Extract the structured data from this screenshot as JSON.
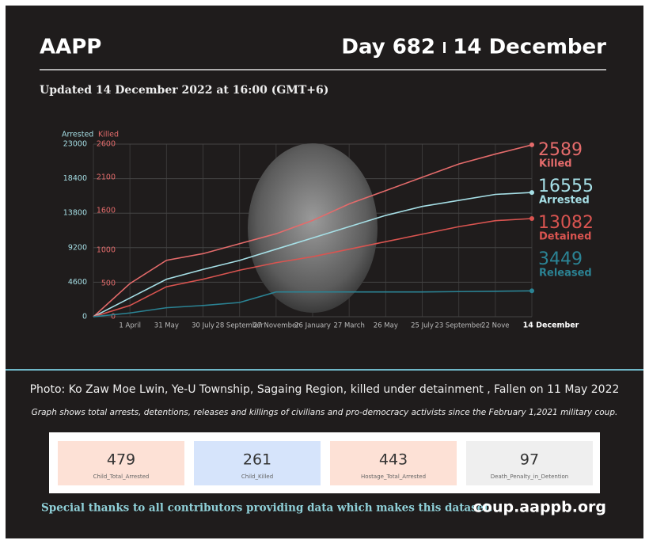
{
  "header": {
    "title": "AAPP",
    "day": "Day 682",
    "date": "14 December",
    "updated": "Updated 14 December 2022 at 16:00 (GMT+6)"
  },
  "chart_data": {
    "type": "line",
    "categories": [
      null,
      "1 April",
      "31 May",
      "30 July",
      "28 September",
      "27 November",
      "26 January",
      "27 March",
      "26 May",
      "25 July",
      "23 September",
      "22 Nove",
      "14 December"
    ],
    "ylabel": "Arrested",
    "y2label": "Killed",
    "ylim": [
      0,
      23000
    ],
    "yticks": [
      0,
      4600,
      9200,
      13800,
      18400,
      23000
    ],
    "y2lim": [
      0,
      2600
    ],
    "y2ticks": [
      0,
      500,
      1000,
      1600,
      2100,
      2600
    ],
    "grid": true,
    "series": [
      {
        "name": "Killed",
        "color": "#e46b6b",
        "axis": "y2",
        "values": [
          0,
          500,
          850,
          950,
          1100,
          1250,
          1450,
          1700,
          1900,
          2100,
          2300,
          2450,
          2589
        ]
      },
      {
        "name": "Arrested",
        "color": "#a6dfe6",
        "values": [
          0,
          2500,
          5000,
          6300,
          7500,
          9000,
          10500,
          12000,
          13500,
          14700,
          15500,
          16300,
          16555
        ]
      },
      {
        "name": "Detained",
        "color": "#d95450",
        "values": [
          0,
          1500,
          4000,
          5000,
          6200,
          7200,
          8000,
          9000,
          10000,
          11000,
          12000,
          12800,
          13082
        ]
      },
      {
        "name": "Released",
        "color": "#2b8394",
        "values": [
          0,
          500,
          1200,
          1500,
          1900,
          3300,
          3300,
          3300,
          3300,
          3300,
          3350,
          3400,
          3449
        ]
      }
    ]
  },
  "caption": "Photo: Ko Zaw Moe Lwin, Ye-U Township, Sagaing Region, killed under detainment , Fallen on 11 May 2022",
  "note": "Graph shows total arrests, detentions, releases and killings of civilians and pro-democracy activists since the February 1,2021 military coup.",
  "stats": [
    {
      "value": 479,
      "label": "Child_Total_Arrested"
    },
    {
      "value": 261,
      "label": "Child_Killed"
    },
    {
      "value": 443,
      "label": "Hostage_Total_Arrested"
    },
    {
      "value": 97,
      "label": "Death_Penalty_in_Detention"
    }
  ],
  "footer": {
    "thanks": "Special thanks to all contributors providing data which makes this dataset.",
    "site": "coup.aappb.org"
  }
}
